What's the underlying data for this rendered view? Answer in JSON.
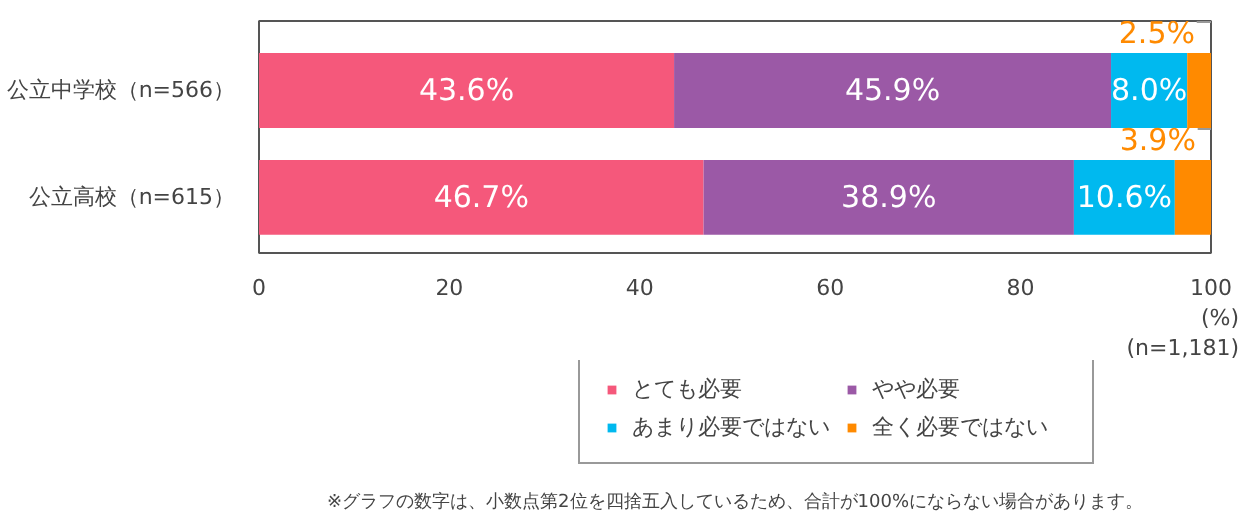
{
  "chart_data": {
    "type": "bar",
    "orientation": "horizontal",
    "stacked": true,
    "categories": [
      "公立中学校（n=566）",
      "公立高校（n=615）"
    ],
    "series": [
      {
        "name": "とても必要",
        "color": "#f5587b",
        "values": [
          43.6,
          46.7
        ],
        "value_labels": [
          "43.6%",
          "46.7%"
        ]
      },
      {
        "name": "やや必要",
        "color": "#9b59a6",
        "values": [
          45.9,
          38.9
        ],
        "value_labels": [
          "45.9%",
          "38.9%"
        ]
      },
      {
        "name": "あまり必要ではない",
        "color": "#00b9ef",
        "values": [
          8.0,
          10.6
        ],
        "value_labels": [
          "8.0%",
          "10.6%"
        ]
      },
      {
        "name": "全く必要ではない",
        "color": "#ff8a00",
        "values": [
          2.5,
          3.9
        ],
        "value_labels": [
          "2.5%",
          "3.9%"
        ]
      }
    ],
    "xlim": [
      0,
      100
    ],
    "xticks": [
      0,
      20,
      40,
      60,
      80,
      100
    ],
    "xlabel": "(%)",
    "grid": false,
    "legend": "bottom",
    "annotations": [
      "(n=1,181)",
      "※グラフの数字は、小数点第2位を四捨五入しているため、合計が100%にならない場合があります。"
    ]
  }
}
